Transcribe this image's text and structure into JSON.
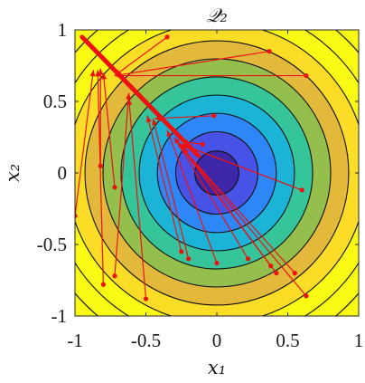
{
  "chart_data": {
    "type": "contour",
    "title": "𝒬₂",
    "xlabel": "x₁",
    "ylabel": "x₂",
    "xlim": [
      -1,
      1
    ],
    "ylim": [
      -1,
      1
    ],
    "xticks": [
      -1,
      -0.5,
      0,
      0.5,
      1
    ],
    "yticks": [
      -1,
      -0.5,
      0,
      0.5,
      1
    ],
    "xtick_labels": [
      "-1",
      "-0.5",
      "0",
      "0.5",
      "1"
    ],
    "ytick_labels": [
      "-1",
      "-0.5",
      "0",
      "0.5",
      "1"
    ],
    "contour_center": [
      0,
      0
    ],
    "contour_levels": [
      0.024,
      0.084,
      0.176,
      0.3,
      0.456,
      0.644,
      0.864,
      1.116,
      1.4,
      1.716
    ],
    "colormap": [
      "#3e26a8",
      "#4753e6",
      "#2e87f7",
      "#1bb4d6",
      "#36c59a",
      "#94bf4d",
      "#e2b93a",
      "#fbdc27",
      "#f9fb15"
    ],
    "grid": false,
    "legend": "none",
    "trajectory_color": "#ee1111",
    "trajectories": [
      {
        "start": [
          -0.35,
          0.95
        ],
        "end": [
          -0.72,
          0.68
        ]
      },
      {
        "start": [
          0.37,
          0.85
        ],
        "end": [
          -0.72,
          0.68
        ]
      },
      {
        "start": [
          0.63,
          0.68
        ],
        "end": [
          -0.72,
          0.68
        ]
      },
      {
        "start": [
          -0.02,
          0.4
        ],
        "end": [
          -0.44,
          0.38
        ]
      },
      {
        "start": [
          -1.0,
          -0.3
        ],
        "end": [
          -0.87,
          0.72
        ]
      },
      {
        "start": [
          -0.82,
          0.05
        ],
        "end": [
          -0.82,
          0.73
        ]
      },
      {
        "start": [
          -0.72,
          -0.1
        ],
        "end": [
          -0.8,
          0.7
        ]
      },
      {
        "start": [
          -0.8,
          -0.78
        ],
        "end": [
          -0.84,
          0.72
        ]
      },
      {
        "start": [
          -0.72,
          -0.72
        ],
        "end": [
          -0.62,
          0.56
        ]
      },
      {
        "start": [
          -0.5,
          -0.88
        ],
        "end": [
          -0.62,
          0.52
        ]
      },
      {
        "start": [
          -0.25,
          -0.55
        ],
        "end": [
          -0.49,
          0.4
        ]
      },
      {
        "start": [
          -0.2,
          -0.6
        ],
        "end": [
          -0.45,
          0.38
        ]
      },
      {
        "start": [
          0.0,
          -0.63
        ],
        "end": [
          -0.35,
          0.3
        ]
      },
      {
        "start": [
          0.22,
          -0.6
        ],
        "end": [
          -0.3,
          0.25
        ]
      },
      {
        "start": [
          0.38,
          -0.65
        ],
        "end": [
          -0.28,
          0.22
        ]
      },
      {
        "start": [
          0.42,
          -0.7
        ],
        "end": [
          -0.26,
          0.2
        ]
      },
      {
        "start": [
          0.55,
          -0.7
        ],
        "end": [
          -0.25,
          0.18
        ]
      },
      {
        "start": [
          0.63,
          -0.86
        ],
        "end": [
          -0.24,
          0.17
        ]
      },
      {
        "start": [
          0.6,
          -0.12
        ],
        "end": [
          -0.25,
          0.2
        ]
      },
      {
        "start": [
          -0.1,
          0.2
        ],
        "end": [
          -0.25,
          0.22
        ]
      }
    ],
    "optimal_path": {
      "start": [
        -0.95,
        0.95
      ],
      "end": [
        -0.13,
        0.12
      ]
    }
  }
}
